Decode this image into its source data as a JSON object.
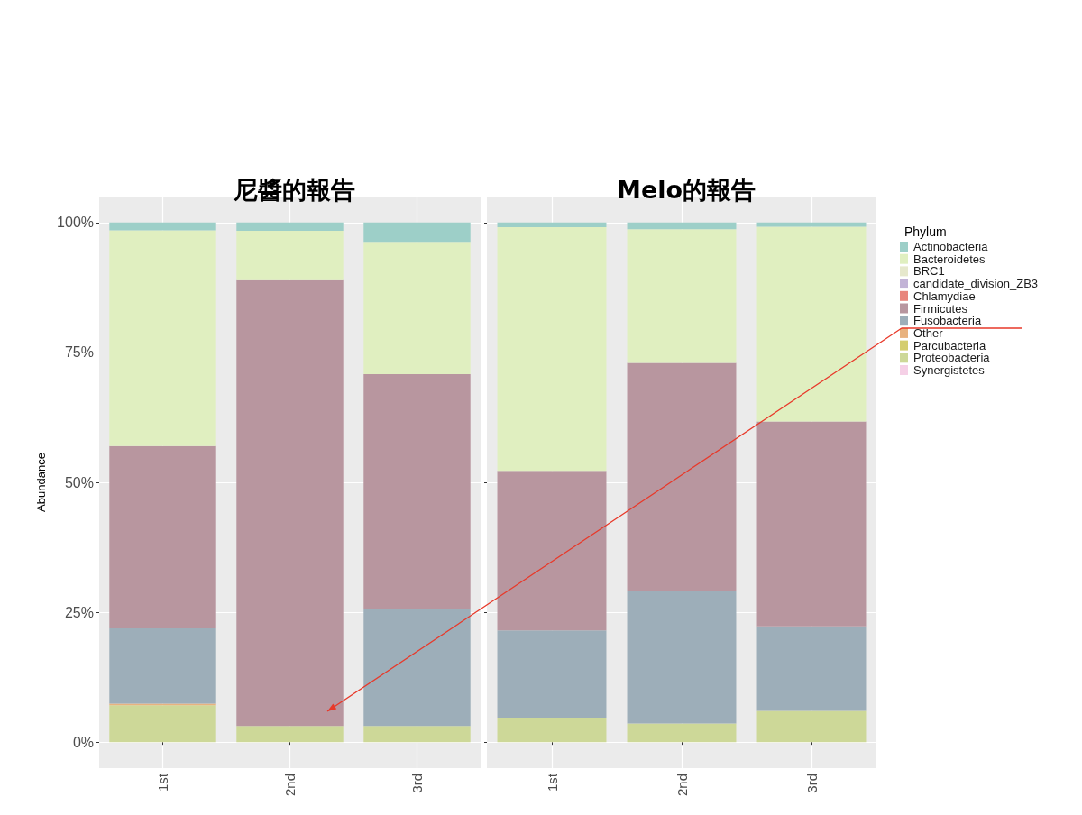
{
  "chart_data": [
    {
      "type": "bar",
      "title": "尼醬的報告",
      "ylabel": "Abundance",
      "categories": [
        "1st",
        "2nd",
        "3rd"
      ],
      "stacked": true,
      "series": [
        {
          "color": "#f5d0e6",
          "values": [
            null,
            null,
            null
          ]
        },
        {
          "color": "#cdd898",
          "values": [
            7.1,
            3.1,
            3.1
          ]
        },
        {
          "color": "#d4cd6e",
          "values": [
            null,
            null,
            null
          ]
        },
        {
          "color": "#e8b27e",
          "values": [
            0.3,
            null,
            null
          ]
        },
        {
          "color": "#9daeb9",
          "values": [
            14.5,
            null,
            22.5
          ]
        },
        {
          "color": "#b8969f",
          "values": [
            35.1,
            85.8,
            45.2
          ]
        },
        {
          "color": "#e8857c",
          "values": [
            null,
            null,
            null
          ]
        },
        {
          "color": "#c2b3d6",
          "values": [
            null,
            null,
            null
          ]
        },
        {
          "color": "#e6e8cc",
          "values": [
            null,
            null,
            null
          ]
        },
        {
          "color": "#e0efc0",
          "values": [
            41.5,
            9.5,
            25.5
          ]
        },
        {
          "color": "#9dcfc8",
          "values": [
            1.5,
            1.6,
            3.7
          ]
        }
      ],
      "ylim": [
        -5,
        105
      ],
      "yticks": [
        {
          "value": 0,
          "label": "0%"
        },
        {
          "value": 25,
          "label": "25%"
        },
        {
          "value": 50,
          "label": "50%"
        },
        {
          "value": 75,
          "label": "75%"
        },
        {
          "value": 100,
          "label": "100%"
        }
      ],
      "grid": true
    },
    {
      "type": "bar",
      "title": "Melo的報告",
      "legend_title": "Phylum",
      "categories": [
        "1st",
        "2nd",
        "3rd"
      ],
      "stacked": true,
      "series": [
        {
          "name": "Synergistetes",
          "color": "#f5d0e6",
          "values": [
            null,
            null,
            null
          ]
        },
        {
          "name": "Proteobacteria",
          "color": "#cdd898",
          "values": [
            4.7,
            3.6,
            6.0
          ]
        },
        {
          "name": "Parcubacteria",
          "color": "#d4cd6e",
          "values": [
            null,
            null,
            null
          ]
        },
        {
          "name": "Other",
          "color": "#e8b27e",
          "values": [
            null,
            null,
            null
          ]
        },
        {
          "name": "Fusobacteria",
          "color": "#9daeb9",
          "values": [
            16.8,
            25.4,
            16.3
          ]
        },
        {
          "name": "Firmicutes",
          "color": "#b8969f",
          "values": [
            30.7,
            44.0,
            39.4
          ]
        },
        {
          "name": "Chlamydiae",
          "color": "#e8857c",
          "values": [
            null,
            null,
            null
          ]
        },
        {
          "name": "candidate_division_ZB3",
          "color": "#c2b3d6",
          "values": [
            null,
            null,
            null
          ]
        },
        {
          "name": "BRC1",
          "color": "#e6e8cc",
          "values": [
            null,
            null,
            null
          ]
        },
        {
          "name": "Bacteroidetes",
          "color": "#e0efc0",
          "values": [
            46.9,
            25.7,
            37.5
          ]
        },
        {
          "name": "Actinobacteria",
          "color": "#9dcfc8",
          "values": [
            0.9,
            1.3,
            0.8
          ]
        }
      ],
      "ylim": [
        -5,
        105
      ],
      "yticks": [
        {
          "value": 0,
          "label": null
        },
        {
          "value": 25,
          "label": null
        },
        {
          "value": 50,
          "label": null
        },
        {
          "value": 75,
          "label": null
        },
        {
          "value": 100,
          "label": null
        }
      ],
      "grid": true,
      "legend": "right",
      "tick_labels": "x"
    }
  ]
}
